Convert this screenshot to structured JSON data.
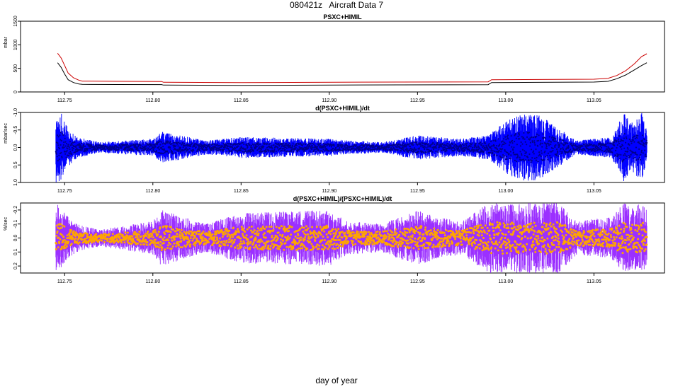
{
  "figure": {
    "title": "080421z   Aircraft Data 7",
    "xlabel": "day of year"
  },
  "colors": {
    "pressure_main": "#cc0000",
    "pressure_sub": "#000000",
    "deriv_fill": "#0000ff",
    "deriv_point": "#00008b",
    "frac_fill": "#9b30ff",
    "frac_point": "#ffa500"
  },
  "chart_data": [
    {
      "type": "line",
      "title": "PSXC+HIMIL",
      "xlabel": "",
      "ylabel": "mbar",
      "xlim": [
        112.725,
        113.09
      ],
      "ylim": [
        0,
        1500
      ],
      "xticks": [
        "112.75",
        "112.80",
        "112.85",
        "112.90",
        "112.95",
        "113.00",
        "113.05"
      ],
      "yticks": [
        "0",
        "500",
        "1000",
        "1500"
      ],
      "series": [
        {
          "x": [
            112.746,
            112.748,
            112.75,
            112.752,
            112.755,
            112.758,
            112.76,
            112.78,
            112.805,
            112.806,
            112.85,
            112.94,
            112.99,
            112.992,
            113.05,
            113.058,
            113.063,
            113.068,
            113.073,
            113.077,
            113.08
          ],
          "y": [
            820,
            720,
            560,
            400,
            300,
            250,
            230,
            225,
            222,
            205,
            200,
            210,
            215,
            260,
            270,
            290,
            350,
            450,
            600,
            750,
            810
          ]
        },
        {
          "x": [
            112.746,
            112.748,
            112.75,
            112.752,
            112.755,
            112.758,
            112.76,
            112.78,
            112.805,
            112.806,
            112.85,
            112.94,
            112.99,
            112.992,
            113.05,
            113.058,
            113.063,
            113.068,
            113.073,
            113.077,
            113.08
          ],
          "y": [
            620,
            520,
            380,
            260,
            200,
            170,
            160,
            158,
            156,
            145,
            140,
            150,
            155,
            200,
            210,
            225,
            280,
            360,
            470,
            560,
            620
          ]
        }
      ]
    },
    {
      "type": "line",
      "title": "d(PSXC+HIMIL)/dt",
      "xlabel": "",
      "ylabel": "mbar/sec",
      "xlim": [
        112.725,
        113.09
      ],
      "ylim": [
        1.0,
        -1.0
      ],
      "xticks": [
        "112.75",
        "112.80",
        "112.85",
        "112.90",
        "112.95",
        "113.00",
        "113.05"
      ],
      "yticks": [
        "1.0",
        "0.5",
        "0.0",
        "-0.5",
        "-1.0"
      ],
      "envelope": {
        "x": [
          112.745,
          112.748,
          112.75,
          112.753,
          112.757,
          112.77,
          112.8,
          112.805,
          112.83,
          112.85,
          112.9,
          112.91,
          112.93,
          112.95,
          112.96,
          112.975,
          112.99,
          113.0,
          113.01,
          113.02,
          113.03,
          113.04,
          113.06,
          113.067,
          113.072,
          113.077,
          113.08
        ],
        "amp": [
          1.0,
          1.0,
          0.7,
          0.5,
          0.3,
          0.15,
          0.25,
          0.45,
          0.2,
          0.3,
          0.25,
          0.2,
          0.15,
          0.35,
          0.3,
          0.25,
          0.35,
          0.75,
          1.0,
          0.9,
          0.55,
          0.2,
          0.3,
          1.0,
          0.7,
          1.0,
          0.5
        ]
      }
    },
    {
      "type": "line",
      "title": "d(PSXC+HIMIL)/(PSXC+HIMIL)/dt",
      "xlabel": "",
      "ylabel": "%/sec",
      "xlim": [
        112.725,
        113.09
      ],
      "ylim": [
        0.25,
        -0.25
      ],
      "xticks": [
        "112.75",
        "112.80",
        "112.85",
        "112.90",
        "112.95",
        "113.00",
        "113.05"
      ],
      "yticks": [
        "0.2",
        "0.1",
        "0.0",
        "-0.1",
        "-0.2"
      ],
      "envelope": {
        "x": [
          112.745,
          112.748,
          112.752,
          112.757,
          112.77,
          112.8,
          112.805,
          112.83,
          112.85,
          112.9,
          112.91,
          112.93,
          112.95,
          112.96,
          112.975,
          112.99,
          113.0,
          113.01,
          113.02,
          113.03,
          113.04,
          113.06,
          113.067,
          113.072,
          113.077,
          113.08
        ],
        "amp": [
          0.25,
          0.22,
          0.15,
          0.1,
          0.06,
          0.12,
          0.2,
          0.1,
          0.18,
          0.2,
          0.12,
          0.1,
          0.2,
          0.15,
          0.12,
          0.25,
          0.25,
          0.25,
          0.25,
          0.25,
          0.12,
          0.15,
          0.25,
          0.22,
          0.25,
          0.2
        ]
      }
    }
  ]
}
